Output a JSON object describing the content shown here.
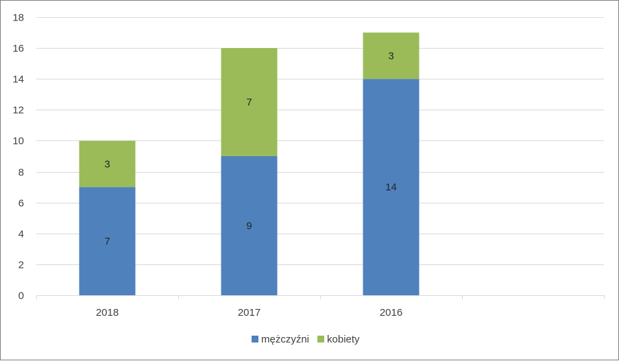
{
  "chart_data": {
    "type": "bar",
    "stacked": true,
    "categories": [
      "2018",
      "2017",
      "2016",
      ""
    ],
    "series": [
      {
        "name": "mężczyźni",
        "values": [
          7,
          9,
          14,
          null
        ],
        "color": "#4f81bd"
      },
      {
        "name": "kobiety",
        "values": [
          3,
          7,
          3,
          null
        ],
        "color": "#9bbb59"
      }
    ],
    "ylim": [
      0,
      18
    ],
    "yticks": [
      "0",
      "2",
      "4",
      "6",
      "8",
      "10",
      "12",
      "14",
      "16",
      "18"
    ],
    "grid": true,
    "legend_position": "bottom",
    "data_labels": true
  }
}
